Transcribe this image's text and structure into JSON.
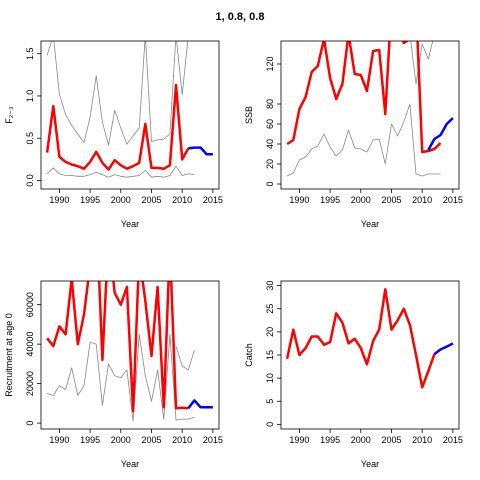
{
  "title": "1, 0.8, 0.8",
  "colors": {
    "observed": "#ff0000",
    "projection": "#0000ff",
    "envelope": "#888888"
  },
  "chart_data": [
    {
      "type": "line",
      "xlabel": "Year",
      "ylabel": "F₂₋₃",
      "xlim": [
        1987,
        2016
      ],
      "ylim": [
        -0.1,
        1.65
      ],
      "xticks": [
        1990,
        1995,
        2000,
        2005,
        2010,
        2015
      ],
      "yticks": [
        0.0,
        0.5,
        1.0,
        1.5
      ],
      "ytick_labels": [
        "0.0",
        "0.5",
        "1.0",
        "1.5"
      ],
      "series": [
        {
          "role": "estimate",
          "color": "#ff0000",
          "x": [
            1988,
            1989,
            1990,
            1991,
            1992,
            1993,
            1994,
            1995,
            1996,
            1997,
            1998,
            1999,
            2000,
            2001,
            2002,
            2003,
            2004,
            2005,
            2006,
            2007,
            2008,
            2009,
            2010,
            2011
          ],
          "y": [
            0.33,
            0.88,
            0.28,
            0.22,
            0.19,
            0.17,
            0.14,
            0.22,
            0.34,
            0.21,
            0.13,
            0.24,
            0.18,
            0.14,
            0.17,
            0.21,
            0.67,
            0.15,
            0.15,
            0.14,
            0.18,
            1.13,
            0.25,
            0.38
          ]
        },
        {
          "role": "projection",
          "color": "#0000ff",
          "x": [
            2011,
            2012,
            2013,
            2014,
            2015
          ],
          "y": [
            0.38,
            0.39,
            0.39,
            0.31,
            0.31
          ]
        },
        {
          "role": "upper",
          "color": "#888888",
          "x": [
            1988,
            1989,
            1990,
            1991,
            1992,
            1993,
            1994,
            1995,
            1996,
            1997,
            1998,
            1999,
            2000,
            2001,
            2002,
            2003,
            2004,
            2005,
            2006,
            2007,
            2008,
            2009,
            2010,
            2011
          ],
          "y": [
            1.48,
            1.72,
            1.02,
            0.78,
            0.65,
            0.55,
            0.45,
            0.75,
            1.24,
            0.69,
            0.42,
            0.83,
            0.62,
            0.43,
            0.53,
            0.62,
            1.72,
            0.46,
            0.48,
            0.49,
            0.55,
            1.72,
            1.01,
            1.72
          ]
        },
        {
          "role": "lower",
          "color": "#888888",
          "x": [
            1988,
            1989,
            1990,
            1991,
            1992,
            1993,
            1994,
            1995,
            1996,
            1997,
            1998,
            1999,
            2000,
            2001,
            2002,
            2003,
            2004,
            2005,
            2006,
            2007,
            2008,
            2009,
            2010,
            2011,
            2012
          ],
          "y": [
            0.08,
            0.15,
            0.08,
            0.06,
            0.06,
            0.05,
            0.05,
            0.07,
            0.1,
            0.07,
            0.04,
            0.07,
            0.05,
            0.04,
            0.05,
            0.06,
            0.12,
            0.04,
            0.05,
            0.04,
            0.06,
            0.17,
            0.06,
            0.08,
            0.07
          ]
        }
      ]
    },
    {
      "type": "line",
      "xlabel": "Year",
      "ylabel": "SSB",
      "xlim": [
        1987,
        2016
      ],
      "ylim": [
        -5,
        143
      ],
      "xticks": [
        1990,
        1995,
        2000,
        2005,
        2010,
        2015
      ],
      "yticks": [
        0,
        20,
        40,
        60,
        80,
        120
      ],
      "ytick_labels": [
        "0",
        "20",
        "40",
        "60",
        "80",
        "120"
      ],
      "series": [
        {
          "role": "estimate",
          "color": "#ff0000",
          "x": [
            1988,
            1989,
            1990,
            1991,
            1992,
            1993,
            1994,
            1995,
            1996,
            1997,
            1998,
            1999,
            2000,
            2001,
            2002,
            2003,
            2004,
            2005,
            2006,
            2007,
            2008,
            2009,
            2010,
            2011,
            2012,
            2013
          ],
          "y": [
            40,
            44,
            75,
            87,
            112,
            118,
            145,
            106,
            85,
            100,
            150,
            110,
            109,
            93,
            133,
            134,
            70,
            180,
            160,
            141,
            145,
            180,
            32,
            33,
            35,
            41
          ]
        },
        {
          "role": "projection",
          "color": "#0000ff",
          "x": [
            2011,
            2012,
            2013,
            2014,
            2015
          ],
          "y": [
            34,
            45,
            49,
            60,
            66
          ]
        },
        {
          "role": "lower",
          "color": "#888888",
          "x": [
            1988,
            1989,
            1990,
            1991,
            1992,
            1993,
            1994,
            1995,
            1996,
            1997,
            1998,
            1999,
            2000,
            2001,
            2002,
            2003,
            2004,
            2005,
            2006,
            2007,
            2008,
            2009,
            2010,
            2011,
            2012,
            2013
          ],
          "y": [
            8,
            11,
            24,
            27,
            35,
            38,
            50,
            37,
            28,
            34,
            54,
            36,
            35,
            32,
            44,
            45,
            20,
            60,
            48,
            62,
            80,
            10,
            8,
            10,
            10,
            10
          ]
        },
        {
          "role": "upper",
          "color": "#888888",
          "x": [
            2008,
            2009,
            2010,
            2011,
            2012
          ],
          "y": [
            150,
            100,
            140,
            125,
            150
          ]
        }
      ]
    },
    {
      "type": "line",
      "xlabel": "Year",
      "ylabel": "Recruitment at age 0",
      "xlim": [
        1987,
        2016
      ],
      "ylim": [
        -3000,
        72000
      ],
      "xticks": [
        1990,
        1995,
        2000,
        2005,
        2010,
        2015
      ],
      "yticks": [
        0,
        20000,
        40000,
        60000
      ],
      "ytick_labels": [
        "0",
        "20000",
        "40000",
        "60000"
      ],
      "series": [
        {
          "role": "estimate",
          "color": "#ff0000",
          "x": [
            1988,
            1989,
            1990,
            1991,
            1992,
            1993,
            1994,
            1995,
            1996,
            1997,
            1998,
            1999,
            2000,
            2001,
            2002,
            2003,
            2004,
            2005,
            2006,
            2007,
            2008,
            2009,
            2010,
            2011
          ],
          "y": [
            43000,
            39000,
            49000,
            45000,
            73000,
            40000,
            55000,
            80000,
            110000,
            32000,
            95000,
            66000,
            60000,
            69000,
            6000,
            85000,
            62000,
            34000,
            69000,
            8000,
            90000,
            7500,
            7800,
            7500
          ]
        },
        {
          "role": "projection",
          "color": "#0000ff",
          "x": [
            2011,
            2012,
            2013,
            2014,
            2015
          ],
          "y": [
            7500,
            11500,
            8000,
            8000,
            8000
          ]
        },
        {
          "role": "lower",
          "color": "#888888",
          "x": [
            1988,
            1989,
            1990,
            1991,
            1992,
            1993,
            1994,
            1995,
            1996,
            1997,
            1998,
            1999,
            2000,
            2001,
            2002,
            2003,
            2004,
            2005,
            2006,
            2007,
            2008,
            2009,
            2010,
            2011,
            2012
          ],
          "y": [
            15000,
            14000,
            19000,
            17000,
            28000,
            14000,
            19000,
            41000,
            40000,
            9000,
            30000,
            24000,
            23000,
            27000,
            1000,
            45000,
            24000,
            11000,
            27000,
            2000,
            45000,
            1500,
            2000,
            2000,
            3000
          ]
        },
        {
          "role": "upper",
          "color": "#888888",
          "x": [
            2009,
            2010,
            2011,
            2012
          ],
          "y": [
            39000,
            29000,
            27000,
            37000
          ]
        }
      ]
    },
    {
      "type": "line",
      "xlabel": "Year",
      "ylabel": "Catch",
      "xlim": [
        1987,
        2016
      ],
      "ylim": [
        -1,
        31
      ],
      "xticks": [
        1990,
        1995,
        2000,
        2005,
        2010,
        2015
      ],
      "yticks": [
        0,
        5,
        10,
        15,
        20,
        25,
        30
      ],
      "ytick_labels": [
        "0",
        "5",
        "10",
        "15",
        "20",
        "25",
        "30"
      ],
      "series": [
        {
          "role": "estimate",
          "color": "#ff0000",
          "x": [
            1988,
            1989,
            1990,
            1991,
            1992,
            1993,
            1994,
            1995,
            1996,
            1997,
            1998,
            1999,
            2000,
            2001,
            2002,
            2003,
            2004,
            2005,
            2006,
            2007,
            2008,
            2009,
            2010,
            2011,
            2012
          ],
          "y": [
            14.2,
            20.5,
            15.0,
            16.5,
            19.0,
            19.0,
            17.2,
            17.8,
            24.0,
            22.0,
            17.5,
            18.5,
            16.5,
            13.0,
            18.0,
            20.5,
            29.2,
            20.5,
            22.5,
            25.0,
            21.5,
            15.0,
            8.0,
            11.5,
            15.2
          ]
        },
        {
          "role": "projection",
          "color": "#0000ff",
          "x": [
            2012,
            2013,
            2014,
            2015
          ],
          "y": [
            15.2,
            16.2,
            16.8,
            17.5
          ]
        }
      ]
    }
  ]
}
